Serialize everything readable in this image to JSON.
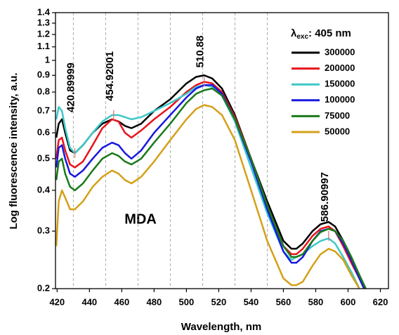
{
  "chart_data": {
    "type": "line",
    "y_label": "Log fluorescence intensity, a.u.",
    "x_label": "Wavelength, nm",
    "annotation_text": "MDA",
    "legend_title": {
      "symbol": "λ",
      "subscript": "exc",
      "text": ": 405 nm"
    },
    "legend": "top-right",
    "log_y": true,
    "xlim": [
      419,
      625
    ],
    "ylim": [
      0.2,
      1.4
    ],
    "xticks": [
      420,
      440,
      460,
      480,
      500,
      520,
      540,
      560,
      580,
      600,
      620
    ],
    "yticks": [
      0.2,
      0.3,
      0.4,
      0.5,
      0.6,
      0.7,
      0.8,
      0.9,
      1,
      1.1,
      1.2,
      1.3,
      1.4
    ],
    "xgrid": [
      430,
      450,
      470,
      490,
      510,
      530,
      550
    ],
    "annotations": [
      {
        "label": "420.89999",
        "x": 431,
        "y": 0.52
      },
      {
        "label": "454.92001",
        "x": 455,
        "y": 0.68
      },
      {
        "label": "510.88",
        "x": 511,
        "y": 0.86
      },
      {
        "label": "586.90997",
        "x": 588,
        "y": 0.29
      }
    ],
    "x": [
      419.5,
      421,
      423,
      425,
      428,
      431,
      436,
      442,
      448,
      454,
      458,
      462,
      466,
      472,
      480,
      490,
      500,
      506,
      511,
      516,
      522,
      530,
      540,
      550,
      560,
      565,
      568,
      572,
      578,
      583,
      588,
      592,
      597,
      602,
      607,
      612
    ],
    "series": [
      {
        "name": "300000",
        "color": "#000000",
        "values": [
          0.58,
          0.64,
          0.66,
          0.6,
          0.53,
          0.52,
          0.55,
          0.6,
          0.64,
          0.66,
          0.65,
          0.63,
          0.62,
          0.64,
          0.7,
          0.76,
          0.85,
          0.89,
          0.9,
          0.88,
          0.82,
          0.68,
          0.5,
          0.37,
          0.28,
          0.265,
          0.265,
          0.275,
          0.3,
          0.315,
          0.32,
          0.31,
          0.28,
          0.25,
          0.22,
          0.195
        ]
      },
      {
        "name": "200000",
        "color": "#e8141c",
        "values": [
          0.5,
          0.57,
          0.58,
          0.53,
          0.48,
          0.47,
          0.49,
          0.55,
          0.62,
          0.66,
          0.65,
          0.6,
          0.58,
          0.61,
          0.66,
          0.72,
          0.8,
          0.84,
          0.86,
          0.85,
          0.8,
          0.67,
          0.5,
          0.36,
          0.27,
          0.255,
          0.255,
          0.265,
          0.29,
          0.305,
          0.31,
          0.3,
          0.27,
          0.24,
          0.215,
          0.19
        ]
      },
      {
        "name": "150000",
        "color": "#3ec8c8",
        "values": [
          0.66,
          0.72,
          0.7,
          0.62,
          0.54,
          0.52,
          0.55,
          0.6,
          0.65,
          0.68,
          0.68,
          0.67,
          0.66,
          0.67,
          0.7,
          0.74,
          0.79,
          0.83,
          0.84,
          0.83,
          0.78,
          0.65,
          0.47,
          0.34,
          0.26,
          0.245,
          0.25,
          0.255,
          0.27,
          0.28,
          0.285,
          0.275,
          0.25,
          0.225,
          0.2,
          0.18
        ]
      },
      {
        "name": "100000",
        "color": "#1818e0",
        "values": [
          0.47,
          0.54,
          0.55,
          0.5,
          0.45,
          0.44,
          0.46,
          0.5,
          0.54,
          0.56,
          0.55,
          0.52,
          0.5,
          0.53,
          0.6,
          0.68,
          0.77,
          0.82,
          0.84,
          0.84,
          0.79,
          0.66,
          0.49,
          0.35,
          0.26,
          0.24,
          0.24,
          0.25,
          0.28,
          0.3,
          0.305,
          0.3,
          0.275,
          0.245,
          0.215,
          0.19
        ]
      },
      {
        "name": "75000",
        "color": "#1a7a1a",
        "values": [
          0.43,
          0.49,
          0.5,
          0.45,
          0.41,
          0.4,
          0.42,
          0.46,
          0.5,
          0.52,
          0.51,
          0.49,
          0.48,
          0.5,
          0.56,
          0.64,
          0.74,
          0.79,
          0.81,
          0.82,
          0.78,
          0.66,
          0.5,
          0.36,
          0.27,
          0.25,
          0.25,
          0.255,
          0.28,
          0.298,
          0.305,
          0.3,
          0.28,
          0.25,
          0.22,
          0.195
        ]
      },
      {
        "name": "50000",
        "color": "#d4a017",
        "values": [
          0.27,
          0.37,
          0.4,
          0.38,
          0.35,
          0.35,
          0.37,
          0.41,
          0.44,
          0.46,
          0.45,
          0.43,
          0.42,
          0.44,
          0.49,
          0.57,
          0.66,
          0.71,
          0.73,
          0.72,
          0.68,
          0.57,
          0.4,
          0.28,
          0.215,
          0.205,
          0.205,
          0.21,
          0.235,
          0.255,
          0.265,
          0.26,
          0.245,
          0.22,
          0.2,
          0.18
        ]
      }
    ]
  }
}
